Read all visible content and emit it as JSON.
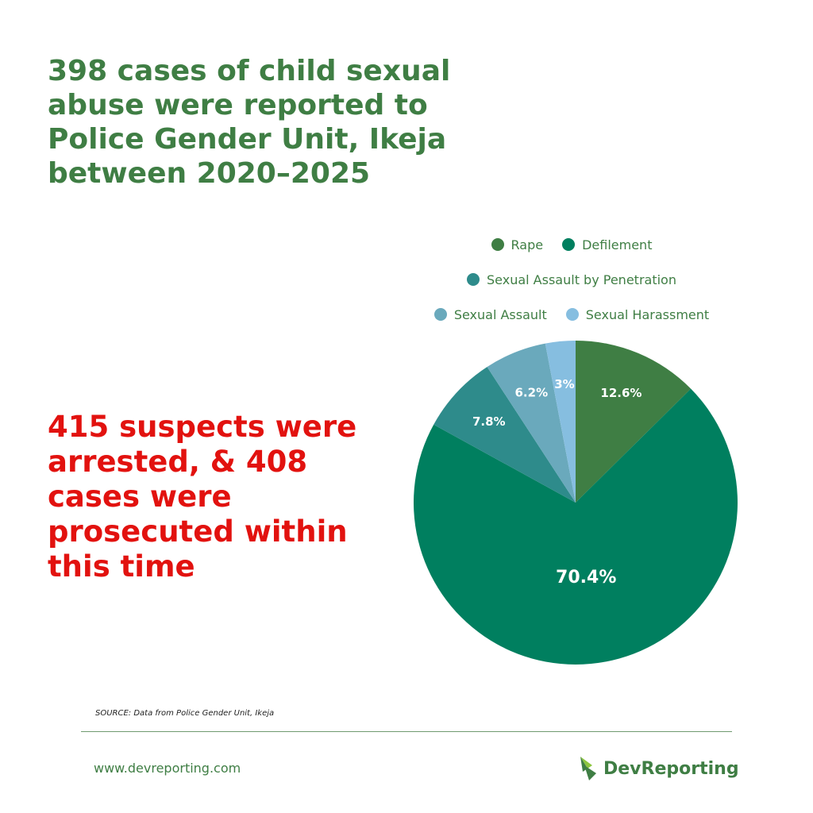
{
  "headline": "398 cases of child sexual abuse were reported to Police Gender Unit, Ikeja between 2020–2025",
  "stat_text": "415 suspects were arrested, & 408 cases were prosecuted within this time",
  "source": "SOURCE: Data from Police Gender Unit, Ikeja",
  "footer": {
    "website": "www.devreporting.com",
    "brand": "DevReporting"
  },
  "colors": {
    "headline": "#3f7e44",
    "stat": "#e2120f",
    "brand": "#3f7e44"
  },
  "legend": [
    [
      "Rape",
      "Defilement"
    ],
    [
      "Sexual Assault by Penetration"
    ],
    [
      "Sexual Assault",
      "Sexual Harassment"
    ]
  ],
  "chart_data": {
    "type": "pie",
    "title": "",
    "legend_position": "top",
    "slices": [
      {
        "name": "Rape",
        "value": 12.6,
        "label": "12.6%",
        "color": "#3f7e44"
      },
      {
        "name": "Defilement",
        "value": 70.4,
        "label": "70.4%",
        "color": "#007f5f"
      },
      {
        "name": "Sexual Assault by Penetration",
        "value": 7.8,
        "label": "7.8%",
        "color": "#2e8b8b"
      },
      {
        "name": "Sexual Assault",
        "value": 6.2,
        "label": "6.2%",
        "color": "#6aa9bc"
      },
      {
        "name": "Sexual Harassment",
        "value": 3,
        "label": "3%",
        "color": "#86bee0"
      }
    ]
  }
}
